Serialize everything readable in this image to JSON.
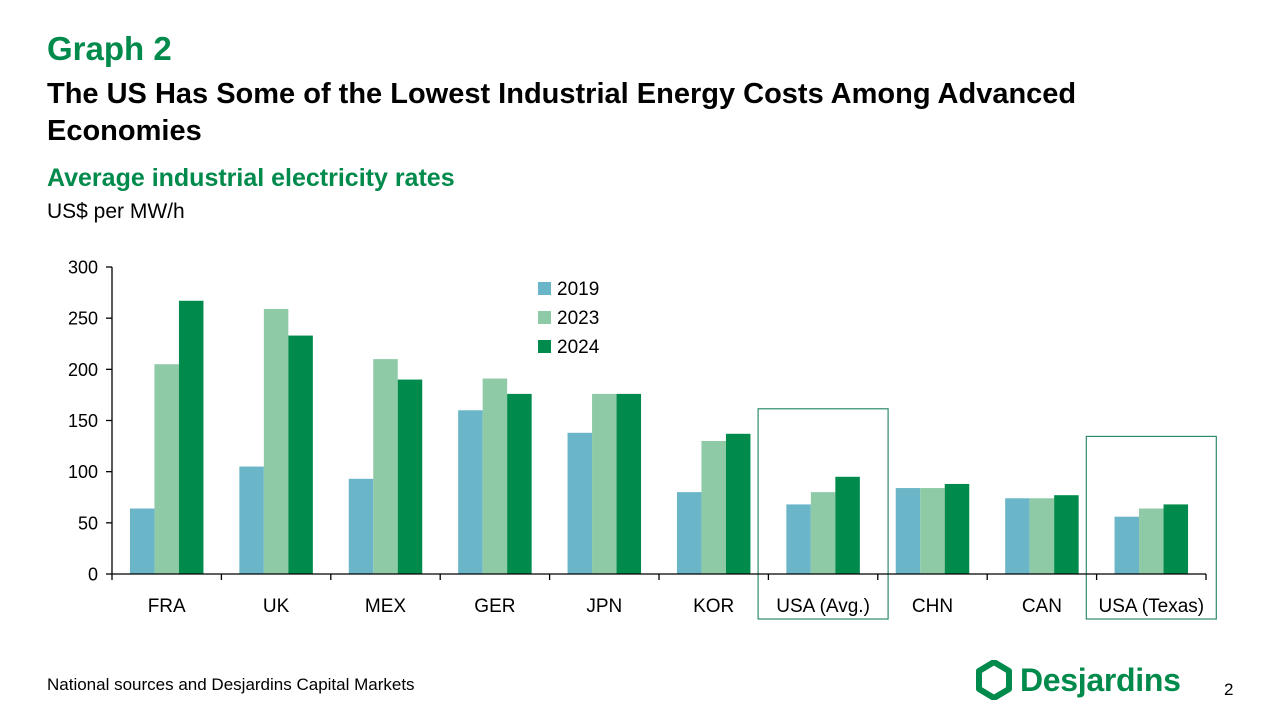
{
  "header": {
    "graph_label": "Graph 2",
    "title": "The US Has Some of the Lowest Industrial Energy Costs Among Advanced Economies",
    "subtitle": "Average industrial electricity rates",
    "units": "US$ per MW/h"
  },
  "footer": {
    "source": "National sources and Desjardins Capital Markets",
    "page_number": "2",
    "logo_text": "Desjardins",
    "logo_icon": "desjardins-hexagon-icon"
  },
  "colors": {
    "brand_green": "#008a4b",
    "series_2019": "#6bb5c8",
    "series_2023": "#8fcaa6",
    "series_2024": "#008a4b",
    "highlight_box": "#2e8b6e"
  },
  "chart_data": {
    "type": "bar",
    "title": "Average industrial electricity rates",
    "ylabel": "US$ per MW/h",
    "xlabel": "",
    "ylim": [
      0,
      300
    ],
    "yticks": [
      0,
      50,
      100,
      150,
      200,
      250,
      300
    ],
    "categories": [
      "FRA",
      "UK",
      "MEX",
      "GER",
      "JPN",
      "KOR",
      "USA (Avg.)",
      "CHN",
      "CAN",
      "USA (Texas)"
    ],
    "series": [
      {
        "name": "2019",
        "color": "#6bb5c8",
        "values": [
          64,
          105,
          93,
          160,
          138,
          80,
          68,
          84,
          74,
          56
        ]
      },
      {
        "name": "2023",
        "color": "#8fcaa6",
        "values": [
          205,
          259,
          210,
          191,
          176,
          130,
          80,
          84,
          74,
          64
        ]
      },
      {
        "name": "2024",
        "color": "#008a4b",
        "values": [
          267,
          233,
          190,
          176,
          176,
          137,
          95,
          88,
          77,
          68
        ]
      }
    ],
    "highlighted_categories": [
      "USA (Avg.)",
      "USA (Texas)"
    ],
    "legend_position": "top-center",
    "grid": false
  }
}
